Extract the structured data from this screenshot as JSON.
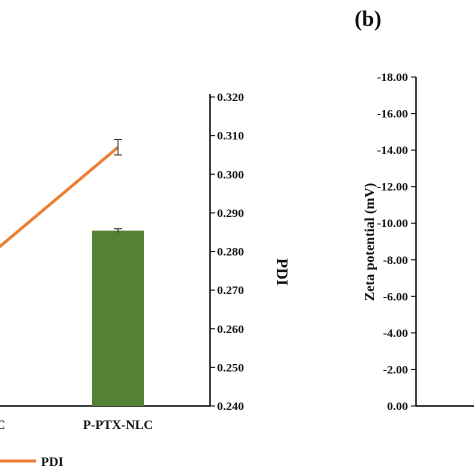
{
  "chart_data": [
    {
      "type": "bar",
      "categories": [
        "…C",
        "P-PTX-NLC"
      ],
      "series": [
        {
          "values": [
            null,
            0.2854
          ],
          "color": "#548235"
        },
        {
          "name": "PDI",
          "type": "line",
          "values": [
            0.28,
            0.307
          ],
          "errors": [
            null,
            0.002
          ],
          "color": "#ED7D31"
        }
      ],
      "y2label": "PDI",
      "y2ticks": [
        "0.240",
        "0.250",
        "0.260",
        "0.270",
        "0.280",
        "0.290",
        "0.300",
        "0.310",
        "0.320"
      ],
      "y2lim": [
        0.24,
        0.32
      ],
      "bar_error": 0.0005,
      "legend": {
        "entries": [
          "PDI"
        ],
        "position": "bottom"
      }
    },
    {
      "panel_label": "(b)",
      "type": "bar",
      "ylabel": "Zeta potential (mV)",
      "yticks": [
        "0.00",
        "-2.00",
        "-4.00",
        "-6.00",
        "-8.00",
        "-10.00",
        "-12.00",
        "-14.00",
        "-16.00",
        "-18.00"
      ],
      "ylim": [
        0,
        -18
      ],
      "inverted_axis": true
    }
  ]
}
